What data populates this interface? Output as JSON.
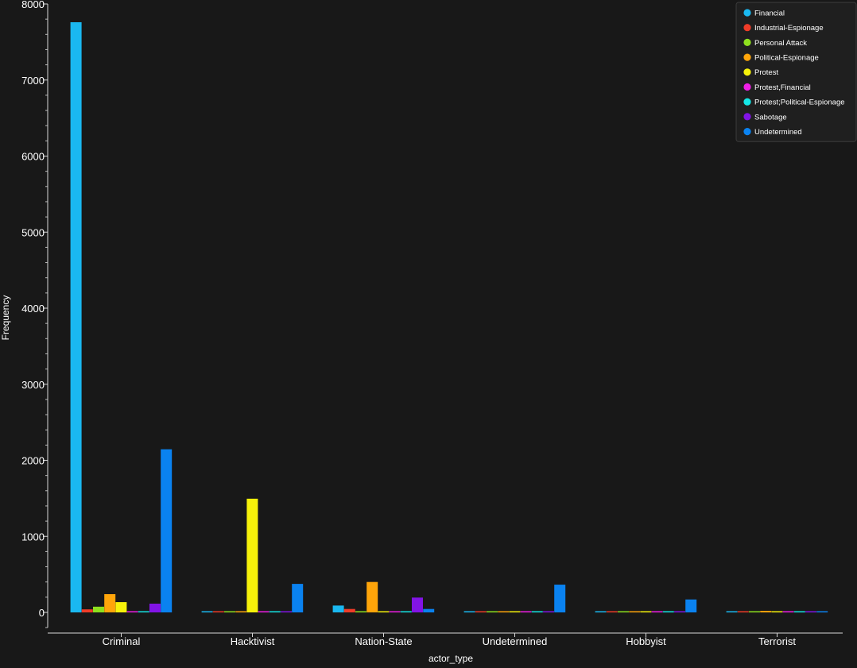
{
  "chart_data": {
    "type": "bar",
    "xlabel": "actor_type",
    "ylabel": "Frequency",
    "ylim": [
      -200,
      8000
    ],
    "yticks": [
      0,
      1000,
      2000,
      3000,
      4000,
      5000,
      6000,
      7000,
      8000
    ],
    "legend_position": "top-right",
    "categories": [
      "Criminal",
      "Hacktivist",
      "Nation-State",
      "Undetermined",
      "Hobbyist",
      "Terrorist"
    ],
    "series": [
      {
        "name": "Financial",
        "color": "#1ab8f0",
        "values": [
          7760,
          10,
          90,
          5,
          10,
          3
        ]
      },
      {
        "name": "Industrial-Espionage",
        "color": "#f03c28",
        "values": [
          40,
          2,
          45,
          2,
          2,
          2
        ]
      },
      {
        "name": "Personal Attack",
        "color": "#8ee01e",
        "values": [
          75,
          5,
          3,
          2,
          2,
          2
        ]
      },
      {
        "name": "Political-Espionage",
        "color": "#ffa50a",
        "values": [
          240,
          5,
          400,
          3,
          3,
          20
        ]
      },
      {
        "name": "Protest",
        "color": "#f6f20a",
        "values": [
          135,
          1495,
          5,
          10,
          5,
          5
        ]
      },
      {
        "name": "Protest,Financial",
        "color": "#f01ee6",
        "values": [
          3,
          2,
          2,
          2,
          2,
          2
        ]
      },
      {
        "name": "Protest;Political-Espionage",
        "color": "#14e6e6",
        "values": [
          3,
          2,
          2,
          2,
          2,
          2
        ]
      },
      {
        "name": "Sabotage",
        "color": "#8214e6",
        "values": [
          115,
          15,
          195,
          10,
          3,
          3
        ]
      },
      {
        "name": "Undetermined",
        "color": "#0a82f0",
        "values": [
          2145,
          375,
          45,
          365,
          170,
          8
        ]
      }
    ]
  }
}
